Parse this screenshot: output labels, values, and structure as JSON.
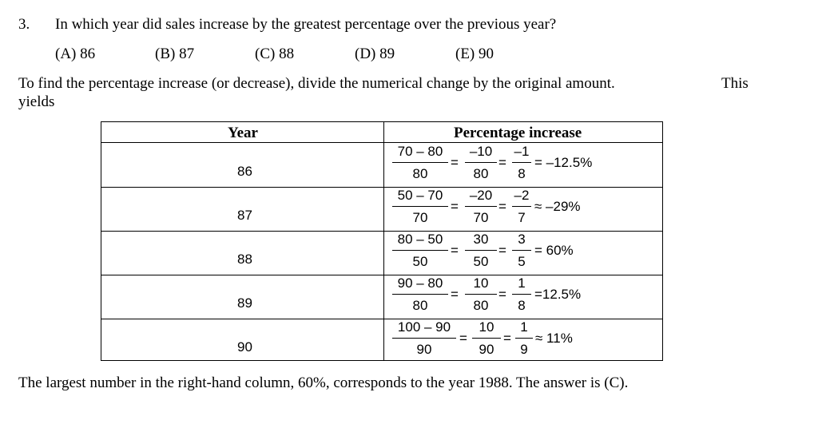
{
  "question": {
    "number": "3.",
    "text": "In which year did sales increase by the greatest percentage over the previous year?",
    "choices": [
      "(A)  86",
      "(B)  87",
      "(C)  88",
      "(D)  89",
      "(E)  90"
    ]
  },
  "explanation": {
    "intro_line1": "To find the percentage increase (or decrease), divide the numerical change by the original amount.",
    "intro_word": "This",
    "intro_line2": "yields"
  },
  "table": {
    "headers": {
      "year": "Year",
      "pct": "Percentage increase"
    },
    "rows": [
      {
        "year": "86",
        "f1": {
          "num": "70 – 80",
          "den": "80"
        },
        "f2": {
          "num": "–10",
          "den": "80"
        },
        "f3": {
          "num": "–1",
          "den": "8"
        },
        "op1": "=",
        "op2": "=",
        "result": "= –12.5%"
      },
      {
        "year": "87",
        "f1": {
          "num": "50 – 70",
          "den": "70"
        },
        "f2": {
          "num": "–20",
          "den": "70"
        },
        "f3": {
          "num": "–2",
          "den": "7"
        },
        "op1": "=",
        "op2": "=",
        "result": "≈ –29%"
      },
      {
        "year": "88",
        "f1": {
          "num": "80 – 50",
          "den": "50"
        },
        "f2": {
          "num": "30",
          "den": "50"
        },
        "f3": {
          "num": "3",
          "den": "5"
        },
        "op1": "=",
        "op2": "=",
        "result": "= 60%"
      },
      {
        "year": "89",
        "f1": {
          "num": "90 – 80",
          "den": "80"
        },
        "f2": {
          "num": "10",
          "den": "80"
        },
        "f3": {
          "num": "1",
          "den": "8"
        },
        "op1": "=",
        "op2": "=",
        "result": "=12.5%"
      },
      {
        "year": "90",
        "f1": {
          "num": "100 – 90",
          "den": "90"
        },
        "f2": {
          "num": "10",
          "den": "90"
        },
        "f3": {
          "num": "1",
          "den": "9"
        },
        "op1": "=",
        "op2": "=",
        "result": "≈ 11%"
      }
    ]
  },
  "conclusion": "The largest number in the right-hand column, 60%, corresponds to the year 1988.  The answer is (C)."
}
